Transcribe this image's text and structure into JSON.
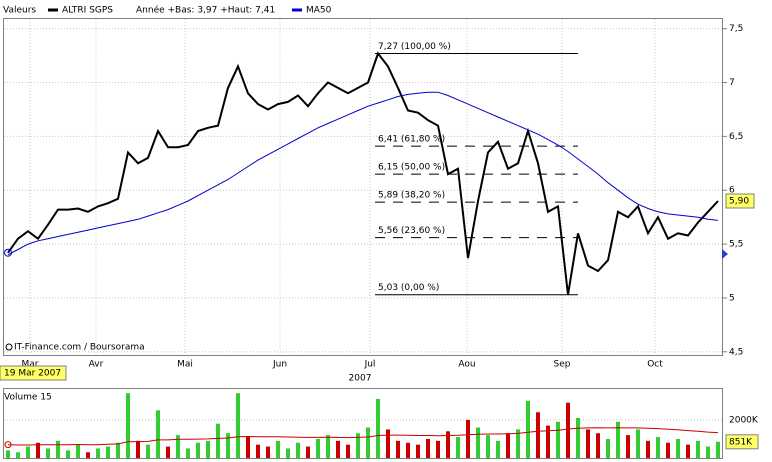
{
  "chart_data": [
    {
      "type": "line",
      "legend_title": "Valeurs",
      "annotation": "Année +Bas: 3,97 +Haut: 7,41",
      "date_label": "19 Mar 2007",
      "credit": "IT-Finance.com / Boursorama",
      "xlabel": "2007",
      "xlim": [
        0,
        71
      ],
      "xticks": [
        {
          "value": 2.2,
          "label": "Mar"
        },
        {
          "value": 8.8,
          "label": "Avr"
        },
        {
          "value": 17.7,
          "label": "Mai"
        },
        {
          "value": 27.2,
          "label": "Jun"
        },
        {
          "value": 36.2,
          "label": "Jul"
        },
        {
          "value": 45.9,
          "label": "Aou"
        },
        {
          "value": 55.4,
          "label": "Sep"
        },
        {
          "value": 64.7,
          "label": "Oct"
        }
      ],
      "ylim": [
        4.47,
        7.59
      ],
      "yticks": [
        {
          "value": 4.5,
          "label": "4,5"
        },
        5,
        {
          "value": 5.5,
          "label": "5,5"
        },
        6,
        {
          "value": 6.5,
          "label": "6,5"
        },
        7,
        {
          "value": 7.5,
          "label": "7,5"
        }
      ],
      "grid": true,
      "series": [
        {
          "name": "ALTRI SGPS",
          "color": "#000000",
          "values": [
            5.42,
            5.55,
            5.62,
            5.55,
            5.68,
            5.82,
            5.82,
            5.83,
            5.8,
            5.85,
            5.88,
            5.92,
            6.35,
            6.25,
            6.3,
            6.55,
            6.4,
            6.4,
            6.42,
            6.55,
            6.58,
            6.6,
            6.95,
            7.15,
            6.9,
            6.8,
            6.75,
            6.8,
            6.82,
            6.88,
            6.78,
            6.9,
            7.0,
            6.95,
            6.9,
            6.95,
            7.0,
            7.27,
            7.15,
            6.95,
            6.74,
            6.72,
            6.65,
            6.6,
            6.15,
            6.2,
            5.37,
            5.9,
            6.35,
            6.45,
            6.2,
            6.25,
            6.55,
            6.25,
            5.8,
            5.85,
            5.03,
            5.6,
            5.3,
            5.25,
            5.35,
            5.8,
            5.75,
            5.85,
            5.6,
            5.75,
            5.55,
            5.6,
            5.58,
            5.7,
            5.8,
            5.9
          ],
          "value_labels": [
            null,
            null,
            null,
            null,
            null,
            null,
            null,
            null,
            null,
            null,
            null,
            null,
            null,
            null,
            null,
            null,
            null,
            null,
            null,
            null,
            null,
            null,
            null,
            null,
            null,
            null,
            null,
            null,
            null,
            null,
            null,
            null,
            null,
            null,
            null,
            null,
            null,
            null,
            null,
            null,
            null,
            null,
            null,
            null,
            null,
            null,
            null,
            null,
            null,
            null,
            null,
            null,
            null,
            null,
            null,
            null,
            null,
            null,
            null,
            null,
            null,
            null,
            null,
            null,
            null,
            null,
            null,
            null,
            null,
            null,
            null,
            "5,90"
          ]
        },
        {
          "name": "MA50",
          "color": "#0000cc",
          "values": [
            5.4,
            5.45,
            5.5,
            5.53,
            5.55,
            5.57,
            5.59,
            5.61,
            5.63,
            5.65,
            5.67,
            5.69,
            5.71,
            5.73,
            5.76,
            5.79,
            5.82,
            5.86,
            5.9,
            5.95,
            6.0,
            6.05,
            6.1,
            6.16,
            6.22,
            6.28,
            6.33,
            6.38,
            6.43,
            6.48,
            6.53,
            6.58,
            6.62,
            6.66,
            6.7,
            6.74,
            6.78,
            6.81,
            6.84,
            6.87,
            6.89,
            6.9,
            6.91,
            6.91,
            6.88,
            6.84,
            6.8,
            6.76,
            6.72,
            6.68,
            6.64,
            6.6,
            6.56,
            6.52,
            6.47,
            6.42,
            6.36,
            6.29,
            6.22,
            6.15,
            6.07,
            6.0,
            5.93,
            5.87,
            5.83,
            5.8,
            5.78,
            5.77,
            5.76,
            5.75,
            5.73,
            5.72
          ]
        }
      ],
      "fibonacci": [
        {
          "value": 7.27,
          "label": "7,27 (100,00 %)",
          "style": "solid"
        },
        {
          "value": 6.41,
          "label": "6,41 (61,80 %)",
          "style": "dashed"
        },
        {
          "value": 6.15,
          "label": "6,15 (50,00 %)",
          "style": "dashed"
        },
        {
          "value": 5.89,
          "label": "5,89 (38,20 %)",
          "style": "dashed"
        },
        {
          "value": 5.56,
          "label": "5,56 (23,60 %)",
          "style": "dashed"
        },
        {
          "value": 5.03,
          "label": "5,03 (0,00 %)",
          "style": "solid"
        }
      ]
    },
    {
      "type": "bar",
      "title": "Volume 15",
      "xlim": [
        0,
        71
      ],
      "ylim": [
        0,
        3620000
      ],
      "yticks": [
        {
          "value": 2000000,
          "label": "2000K"
        }
      ],
      "up_color": "#33cc33",
      "down_color": "#cc0000",
      "values": [
        400000,
        300000,
        600000,
        800000,
        500000,
        900000,
        400000,
        700000,
        300000,
        500000,
        600000,
        800000,
        3400000,
        900000,
        700000,
        2500000,
        600000,
        1200000,
        500000,
        800000,
        900000,
        1800000,
        1300000,
        3400000,
        1100000,
        700000,
        600000,
        900000,
        500000,
        800000,
        600000,
        1000000,
        1200000,
        900000,
        700000,
        1300000,
        1600000,
        3100000,
        1500000,
        900000,
        800000,
        700000,
        1000000,
        900000,
        1400000,
        1100000,
        2000000,
        1600000,
        1200000,
        900000,
        1300000,
        1500000,
        3000000,
        2400000,
        1700000,
        1900000,
        2900000,
        2100000,
        1500000,
        1300000,
        1000000,
        1900000,
        1200000,
        1500000,
        900000,
        1100000,
        800000,
        1000000,
        700000,
        900000,
        600000,
        851000
      ],
      "value_labels": [
        null,
        null,
        null,
        null,
        null,
        null,
        null,
        null,
        null,
        null,
        null,
        null,
        null,
        null,
        null,
        null,
        null,
        null,
        null,
        null,
        null,
        null,
        null,
        null,
        null,
        null,
        null,
        null,
        null,
        null,
        null,
        null,
        null,
        null,
        null,
        null,
        null,
        null,
        null,
        null,
        null,
        null,
        null,
        null,
        null,
        null,
        null,
        null,
        null,
        null,
        null,
        null,
        null,
        null,
        null,
        null,
        null,
        null,
        null,
        null,
        null,
        null,
        null,
        null,
        null,
        null,
        null,
        null,
        null,
        null,
        null,
        "851K"
      ],
      "average": {
        "color": "#cc0000",
        "values": [
          700000,
          680000,
          680000,
          690000,
          690000,
          700000,
          700000,
          710000,
          700000,
          700000,
          720000,
          740000,
          850000,
          860000,
          870000,
          950000,
          950000,
          980000,
          980000,
          990000,
          1000000,
          1030000,
          1050000,
          1120000,
          1130000,
          1120000,
          1110000,
          1110000,
          1100000,
          1090000,
          1080000,
          1080000,
          1090000,
          1080000,
          1070000,
          1080000,
          1100000,
          1180000,
          1200000,
          1200000,
          1190000,
          1180000,
          1180000,
          1170000,
          1180000,
          1190000,
          1220000,
          1250000,
          1260000,
          1260000,
          1270000,
          1290000,
          1350000,
          1400000,
          1430000,
          1460000,
          1520000,
          1560000,
          1580000,
          1590000,
          1580000,
          1590000,
          1580000,
          1580000,
          1560000,
          1540000,
          1510000,
          1480000,
          1440000,
          1400000,
          1360000,
          1330000
        ]
      }
    }
  ]
}
